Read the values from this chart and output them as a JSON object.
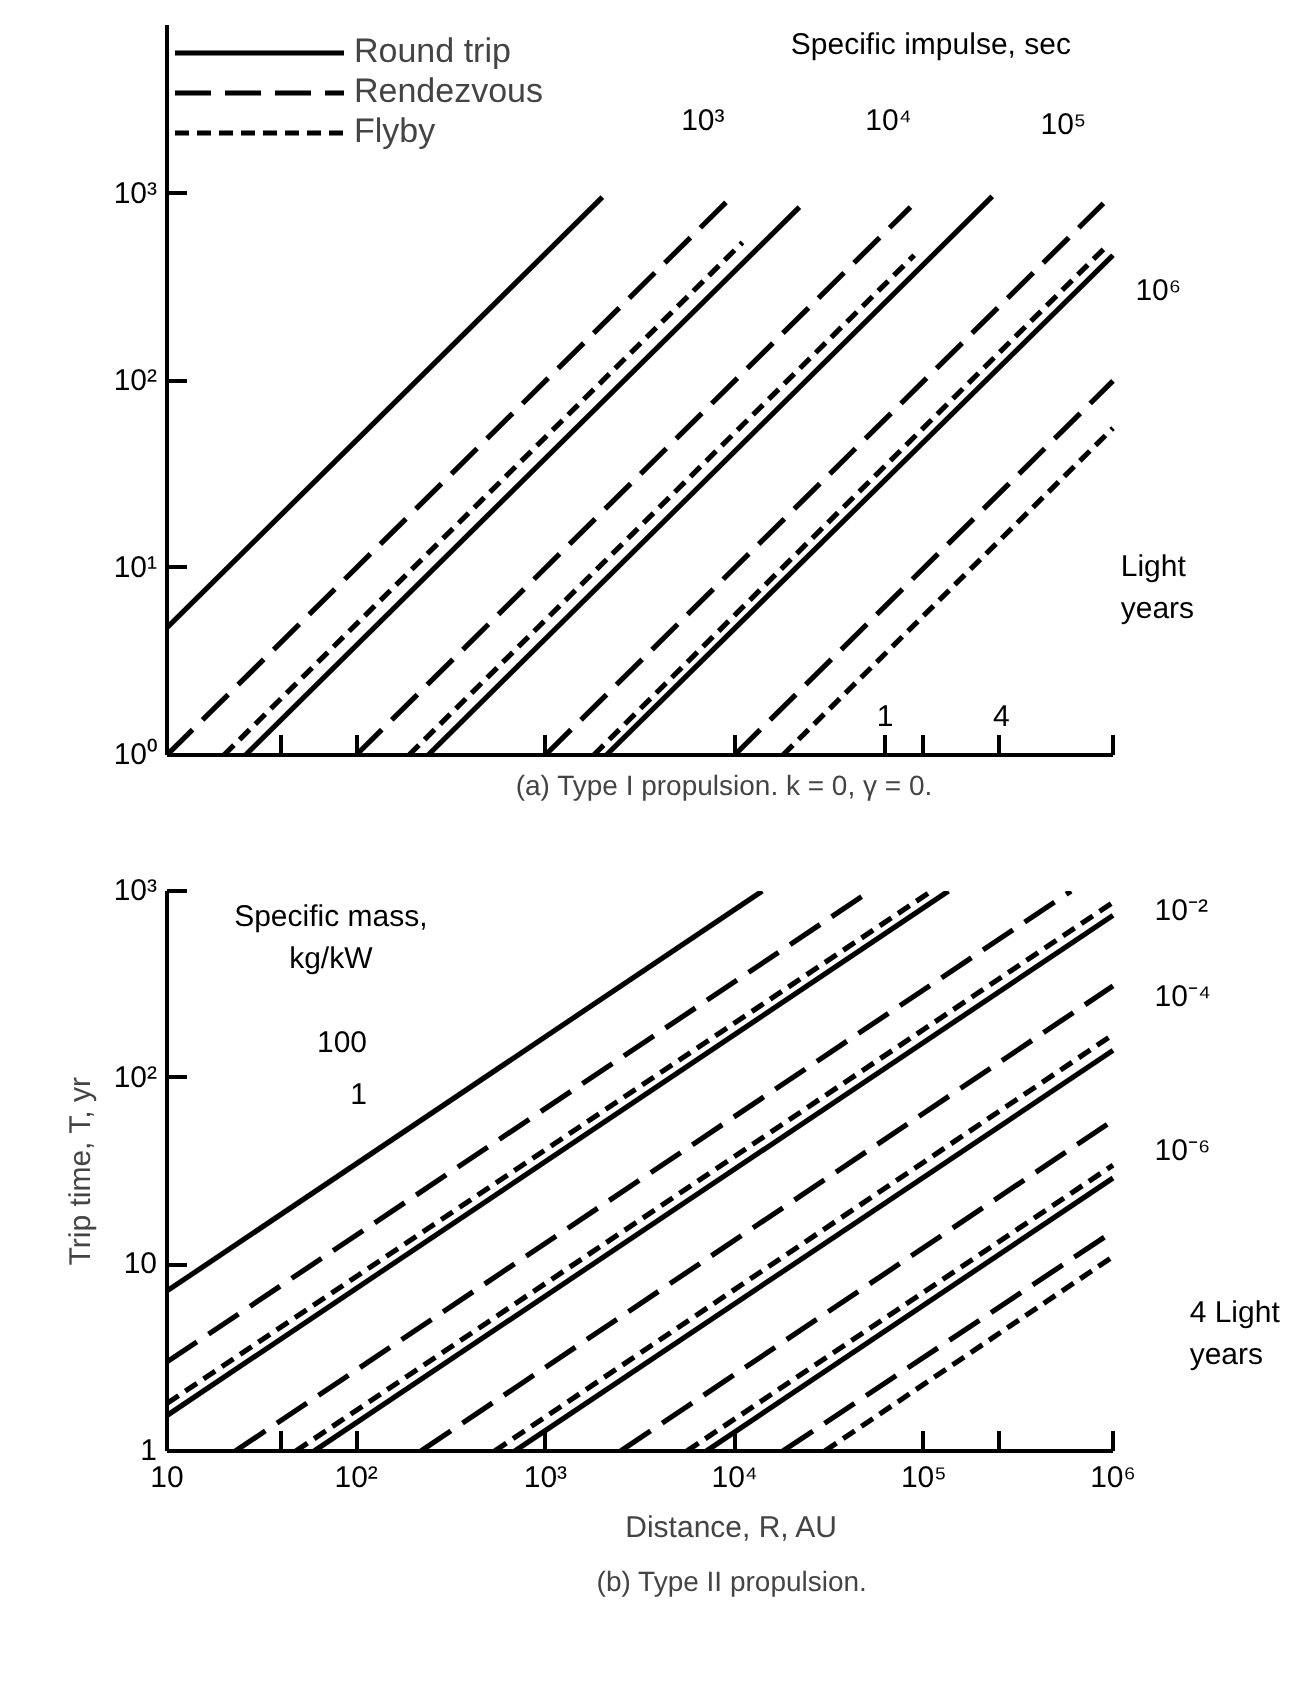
{
  "chart_data": [
    {
      "type": "line",
      "title": "(a) Type I propulsion.  k = 0,  γ = 0.",
      "log": "xy",
      "legend": "top left",
      "tick_labels": "y",
      "xlim": [
        10,
        1000000
      ],
      "ylim": [
        1,
        8000
      ],
      "xticks": [
        {
          "value": 10,
          "label": null
        },
        {
          "value": 40,
          "label": null
        },
        {
          "value": 100,
          "label": null
        },
        {
          "value": 1000,
          "label": null
        },
        {
          "value": 10000,
          "label": null
        },
        {
          "value": 63000,
          "label": null
        },
        {
          "value": 100000,
          "label": null
        },
        {
          "value": 250000,
          "label": null
        },
        {
          "value": 1000000,
          "label": null
        }
      ],
      "yticks": [
        {
          "value": 1,
          "label": "10⁰"
        },
        {
          "value": 10,
          "label": "10¹"
        },
        {
          "value": 100,
          "label": "10²"
        },
        {
          "value": 1000,
          "label": "10³"
        }
      ],
      "annotations": [
        "Specific impulse, sec",
        "Light years",
        "10³",
        "10⁴",
        "10⁵",
        "10⁶",
        "1",
        "4"
      ],
      "series": [
        {
          "name": "Round trip",
          "color": "#000000",
          "line_style": "solid",
          "x": [
            10,
            2000
          ],
          "values": [
            4.8,
            960
          ]
        },
        {
          "name": "Rendezvous",
          "color": "#000000",
          "line_style": "dashed",
          "x": [
            10,
            9300
          ],
          "values": [
            1,
            930
          ]
        },
        {
          "name": "Flyby",
          "color": "#000000",
          "line_style": "dotted",
          "x": [
            20,
            11000
          ],
          "values": [
            1,
            550
          ]
        },
        {
          "color": "#000000",
          "line_style": "solid",
          "x": [
            26,
            22000
          ],
          "values": [
            1,
            850
          ]
        },
        {
          "color": "#000000",
          "line_style": "dashed",
          "x": [
            100,
            85000
          ],
          "values": [
            1,
            850
          ]
        },
        {
          "color": "#000000",
          "line_style": "dotted",
          "x": [
            190,
            89000
          ],
          "values": [
            1,
            470
          ]
        },
        {
          "color": "#000000",
          "line_style": "solid",
          "x": [
            240,
            230000
          ],
          "values": [
            1,
            970
          ]
        },
        {
          "color": "#000000",
          "line_style": "dashed",
          "x": [
            1000,
            890000
          ],
          "values": [
            1,
            890
          ]
        },
        {
          "color": "#000000",
          "line_style": "dotted",
          "x": [
            1800,
            950000
          ],
          "values": [
            1,
            540
          ]
        },
        {
          "color": "#000000",
          "line_style": "solid",
          "x": [
            2100,
            1000000
          ],
          "values": [
            1,
            470
          ]
        },
        {
          "color": "#000000",
          "line_style": "dashed",
          "x": [
            10000,
            1000000
          ],
          "values": [
            1,
            100
          ]
        },
        {
          "color": "#000000",
          "line_style": "dotted",
          "x": [
            18000,
            1000000
          ],
          "values": [
            1,
            56
          ]
        }
      ]
    },
    {
      "type": "line",
      "title": "(b) Type II propulsion.",
      "xlabel": "Distance, R, AU",
      "ylabel": "Trip time, T, yr",
      "log": "xy",
      "xlim": [
        10,
        1000000
      ],
      "ylim": [
        1,
        1000
      ],
      "xticks": [
        10,
        {
          "value": 40,
          "label": null
        },
        {
          "value": 100,
          "label": "10²"
        },
        {
          "value": 1000,
          "label": "10³"
        },
        {
          "value": 10000,
          "label": "10⁴"
        },
        {
          "value": 100000,
          "label": "10⁵"
        },
        {
          "value": 250000,
          "label": null
        },
        {
          "value": 1000000,
          "label": "10⁶"
        }
      ],
      "yticks": [
        1,
        10,
        {
          "value": 100,
          "label": "10²"
        },
        {
          "value": 1000,
          "label": "10³"
        }
      ],
      "annotations": [
        "Specific mass, kg/kW",
        "4 Light years",
        "100",
        "1",
        "10⁻²",
        "10⁻⁴",
        "10⁻⁶"
      ],
      "series": [
        {
          "color": "#000000",
          "line_style": "solid",
          "x": [
            10,
            14000
          ],
          "values": [
            7.2,
            1000
          ]
        },
        {
          "color": "#000000",
          "line_style": "dashed",
          "x": [
            10,
            52000
          ],
          "values": [
            3.0,
            1000
          ]
        },
        {
          "color": "#000000",
          "line_style": "dotted",
          "x": [
            10,
            110000
          ],
          "values": [
            1.8,
            1000
          ]
        },
        {
          "color": "#000000",
          "line_style": "solid",
          "x": [
            10,
            135000
          ],
          "values": [
            1.55,
            1000
          ]
        },
        {
          "color": "#000000",
          "line_style": "dashed",
          "x": [
            23,
            600000
          ],
          "values": [
            1,
            1000
          ]
        },
        {
          "color": "#000000",
          "line_style": "dotted",
          "x": [
            48,
            1000000
          ],
          "values": [
            1,
            870
          ]
        },
        {
          "color": "#000000",
          "line_style": "solid",
          "x": [
            60,
            1000000
          ],
          "values": [
            1,
            740
          ]
        },
        {
          "color": "#000000",
          "line_style": "dashed",
          "x": [
            220,
            1000000
          ],
          "values": [
            1,
            310
          ]
        },
        {
          "color": "#000000",
          "line_style": "dotted",
          "x": [
            540,
            1000000
          ],
          "values": [
            1,
            170
          ]
        },
        {
          "color": "#000000",
          "line_style": "solid",
          "x": [
            690,
            1000000
          ],
          "values": [
            1,
            140
          ]
        },
        {
          "color": "#000000",
          "line_style": "dashed",
          "x": [
            2500,
            1000000
          ],
          "values": [
            1,
            59
          ]
        },
        {
          "color": "#000000",
          "line_style": "dotted",
          "x": [
            5600,
            1000000
          ],
          "values": [
            1,
            34
          ]
        },
        {
          "color": "#000000",
          "line_style": "solid",
          "x": [
            7100,
            1000000
          ],
          "values": [
            1,
            29
          ]
        },
        {
          "color": "#000000",
          "line_style": "dashed",
          "x": [
            18000,
            1000000
          ],
          "values": [
            1,
            15
          ]
        },
        {
          "color": "#000000",
          "line_style": "dotted",
          "x": [
            30000,
            1000000
          ],
          "values": [
            1,
            11
          ]
        }
      ]
    }
  ]
}
